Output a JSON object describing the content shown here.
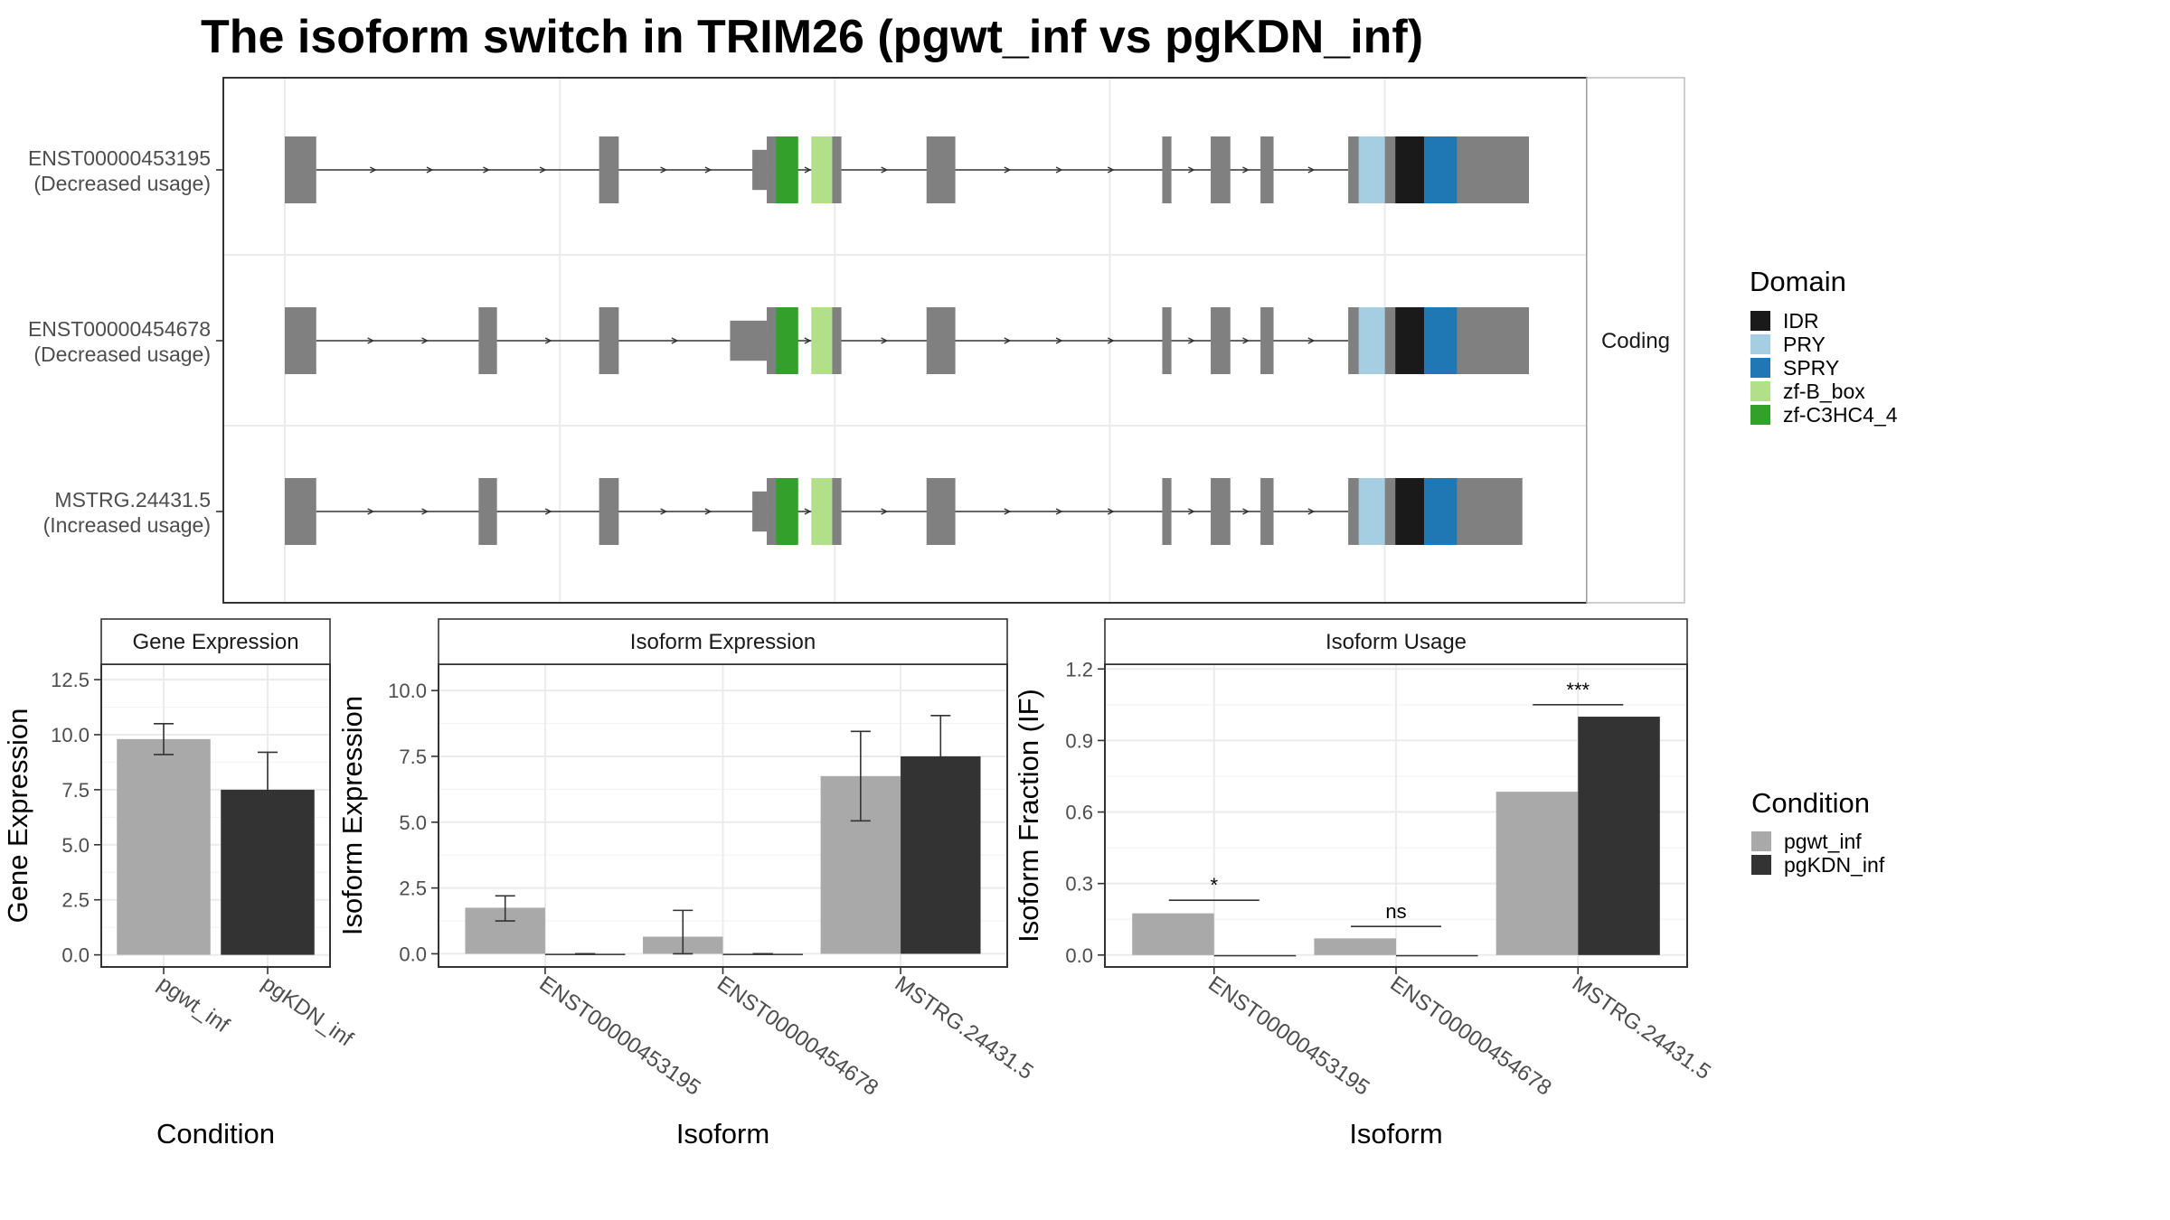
{
  "title": "The isoform switch in TRIM26 (pgwt_inf vs pgKDN_inf)",
  "colors": {
    "exon": "#808080",
    "intron": "#333333",
    "panel_border": "#333333",
    "strip_border": "#bdbdbd",
    "grid": "#ebebeb",
    "domains": {
      "IDR": "#1a1a1a",
      "PRY": "#a6cee3",
      "SPRY": "#1f78b4",
      "zf-B_box": "#b2df8a",
      "zf-C3HC4_4": "#33a02c"
    },
    "conditions": {
      "pgwt_inf": "#a9a9a9",
      "pgKDN_inf": "#333333"
    }
  },
  "chart_data": [
    {
      "type": "isoform_structure",
      "strip_label": "Coding",
      "isoforms": [
        {
          "label": "ENST00000453195",
          "sublabel": "(Decreased usage)",
          "exons": [
            [
              0,
              2.4,
              0.5
            ],
            [
              24,
              25.5,
              0.5
            ],
            [
              35.7,
              36.8,
              0.3
            ],
            [
              36.8,
              38.8,
              0.5
            ],
            [
              41,
              42.5,
              0.5
            ],
            [
              49,
              51.2,
              0.5
            ],
            [
              67,
              67.7,
              0.5
            ],
            [
              70.7,
              72.2,
              0.5
            ],
            [
              74.5,
              75.5,
              0.5
            ],
            [
              81.2,
              95,
              0.5
            ]
          ],
          "domains": [
            {
              "name": "zf-C3HC4_4",
              "from": 37.5,
              "to": 39.2
            },
            {
              "name": "zf-B_box",
              "from": 40.2,
              "to": 41.8
            },
            {
              "name": "PRY",
              "from": 82,
              "to": 84
            },
            {
              "name": "IDR",
              "from": 84.8,
              "to": 87
            },
            {
              "name": "SPRY",
              "from": 87,
              "to": 89.5
            }
          ]
        },
        {
          "label": "ENST00000454678",
          "sublabel": "(Decreased usage)",
          "exons": [
            [
              0,
              2.4,
              0.5
            ],
            [
              14.8,
              16.2,
              0.5
            ],
            [
              24,
              25.5,
              0.5
            ],
            [
              34,
              36.8,
              0.3
            ],
            [
              36.8,
              38.8,
              0.5
            ],
            [
              41,
              42.5,
              0.5
            ],
            [
              49,
              51.2,
              0.5
            ],
            [
              67,
              67.7,
              0.5
            ],
            [
              70.7,
              72.2,
              0.5
            ],
            [
              74.5,
              75.5,
              0.5
            ],
            [
              81.2,
              95,
              0.5
            ]
          ],
          "domains": [
            {
              "name": "zf-C3HC4_4",
              "from": 37.5,
              "to": 39.2
            },
            {
              "name": "zf-B_box",
              "from": 40.2,
              "to": 41.8
            },
            {
              "name": "PRY",
              "from": 82,
              "to": 84
            },
            {
              "name": "IDR",
              "from": 84.8,
              "to": 87
            },
            {
              "name": "SPRY",
              "from": 87,
              "to": 89.5
            }
          ]
        },
        {
          "label": "MSTRG.24431.5",
          "sublabel": "(Increased usage)",
          "exons": [
            [
              0,
              2.4,
              0.5
            ],
            [
              14.8,
              16.2,
              0.5
            ],
            [
              24,
              25.5,
              0.5
            ],
            [
              35.7,
              36.8,
              0.3
            ],
            [
              36.8,
              38.8,
              0.5
            ],
            [
              41,
              42.5,
              0.5
            ],
            [
              49,
              51.2,
              0.5
            ],
            [
              67,
              67.7,
              0.5
            ],
            [
              70.7,
              72.2,
              0.5
            ],
            [
              74.5,
              75.5,
              0.5
            ],
            [
              81.2,
              94.5,
              0.5
            ]
          ],
          "domains": [
            {
              "name": "zf-C3HC4_4",
              "from": 37.5,
              "to": 39.2
            },
            {
              "name": "zf-B_box",
              "from": 40.2,
              "to": 41.8
            },
            {
              "name": "PRY",
              "from": 82,
              "to": 84
            },
            {
              "name": "IDR",
              "from": 84.8,
              "to": 87
            },
            {
              "name": "SPRY",
              "from": 87,
              "to": 89.5
            }
          ]
        }
      ],
      "legend": {
        "title": "Domain",
        "items": [
          "IDR",
          "PRY",
          "SPRY",
          "zf-B_box",
          "zf-C3HC4_4"
        ]
      }
    },
    {
      "type": "bar",
      "strip_title": "Gene Expression",
      "xlabel": "Condition",
      "ylabel": "Gene Expression",
      "ylim": [
        -0.55,
        13.2
      ],
      "yticks": [
        0,
        2.5,
        5,
        7.5,
        10,
        12.5
      ],
      "ytick_labels": [
        "0.0",
        "2.5",
        "5.0",
        "7.5",
        "10.0",
        "12.5"
      ],
      "categories": [
        "pgwt_inf",
        "pgKDN_inf"
      ],
      "values": [
        9.8,
        7.5
      ],
      "errors": [
        [
          9.1,
          10.5
        ],
        [
          5.9,
          9.2
        ]
      ]
    },
    {
      "type": "bar",
      "strip_title": "Isoform Expression",
      "xlabel": "Isoform",
      "ylabel": "Isoform Expression",
      "ylim": [
        -0.5,
        11.0
      ],
      "yticks": [
        0,
        2.5,
        5,
        7.5,
        10
      ],
      "ytick_labels": [
        "0.0",
        "2.5",
        "5.0",
        "7.5",
        "10.0"
      ],
      "categories": [
        "ENST00000453195",
        "ENST00000454678",
        "MSTRG.24431.5"
      ],
      "series": [
        {
          "name": "pgwt_inf",
          "values": [
            1.75,
            0.65,
            6.75
          ],
          "errors": [
            [
              1.25,
              2.2
            ],
            [
              0.0,
              1.65
            ],
            [
              5.05,
              8.45
            ]
          ]
        },
        {
          "name": "pgKDN_inf",
          "values": [
            0.0,
            0.0,
            7.5
          ],
          "errors": [
            [
              0,
              0
            ],
            [
              0,
              0
            ],
            [
              5.9,
              9.05
            ]
          ]
        }
      ]
    },
    {
      "type": "bar",
      "strip_title": "Isoform Usage",
      "xlabel": "Isoform",
      "ylabel": "Isoform Fraction (IF)",
      "ylim": [
        -0.05,
        1.22
      ],
      "yticks": [
        0,
        0.3,
        0.6,
        0.9,
        1.2
      ],
      "ytick_labels": [
        "0.0",
        "0.3",
        "0.6",
        "0.9",
        "1.2"
      ],
      "categories": [
        "ENST00000453195",
        "ENST00000454678",
        "MSTRG.24431.5"
      ],
      "series": [
        {
          "name": "pgwt_inf",
          "values": [
            0.175,
            0.07,
            0.685
          ]
        },
        {
          "name": "pgKDN_inf",
          "values": [
            0.0,
            0.0,
            1.0
          ]
        }
      ],
      "significance": [
        {
          "label": "*",
          "y": 0.23
        },
        {
          "label": "ns",
          "y": 0.12
        },
        {
          "label": "***",
          "y": 1.05
        }
      ]
    }
  ],
  "condition_legend": {
    "title": "Condition",
    "items": [
      "pgwt_inf",
      "pgKDN_inf"
    ]
  }
}
